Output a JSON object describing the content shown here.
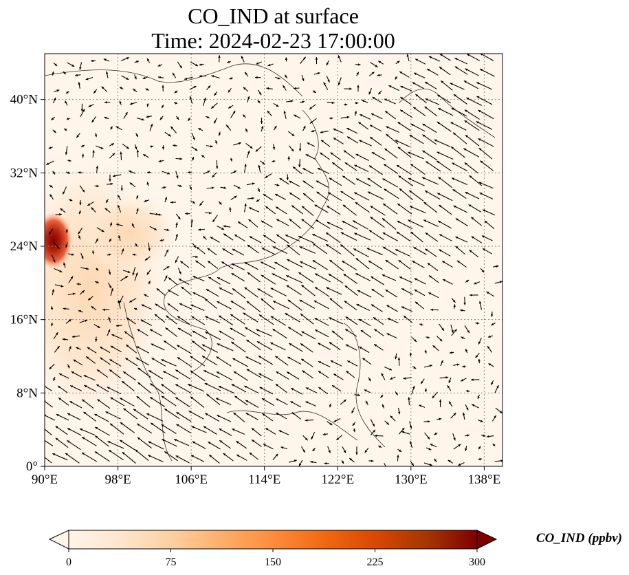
{
  "title": {
    "line1": "CO_IND at surface",
    "line2": "Time: 2024-02-23 17:00:00"
  },
  "map": {
    "lon_range": [
      90,
      140
    ],
    "lat_range": [
      0,
      45
    ],
    "lon_ticks": [
      {
        "value": 90,
        "label": "90°E"
      },
      {
        "value": 98,
        "label": "98°E"
      },
      {
        "value": 106,
        "label": "106°E"
      },
      {
        "value": 114,
        "label": "114°E"
      },
      {
        "value": 122,
        "label": "122°E"
      },
      {
        "value": 130,
        "label": "130°E"
      },
      {
        "value": 138,
        "label": "138°E"
      }
    ],
    "lat_ticks": [
      {
        "value": 0,
        "label": "0°"
      },
      {
        "value": 8,
        "label": "8°N"
      },
      {
        "value": 16,
        "label": "16°N"
      },
      {
        "value": 24,
        "label": "24°N"
      },
      {
        "value": 32,
        "label": "32°N"
      },
      {
        "value": 40,
        "label": "40°N"
      }
    ],
    "gridlines": true,
    "field_colors": {
      "background": "#fff5eb",
      "low": "#fee6ce",
      "mid": "#fdae6b",
      "high": "#d94801",
      "max": "#7f0000"
    },
    "wind_vectors": "black arrows"
  },
  "colorbar": {
    "label": "CO_IND (ppbv)",
    "min": 0,
    "max": 300,
    "ticks": [
      "0",
      "75",
      "150",
      "225",
      "300"
    ],
    "extend": "both",
    "colormap": [
      "#fff5eb",
      "#fee6ce",
      "#fdd0a2",
      "#fdae6b",
      "#fd8d3c",
      "#f16913",
      "#d94801",
      "#a63603",
      "#7f0000"
    ]
  }
}
